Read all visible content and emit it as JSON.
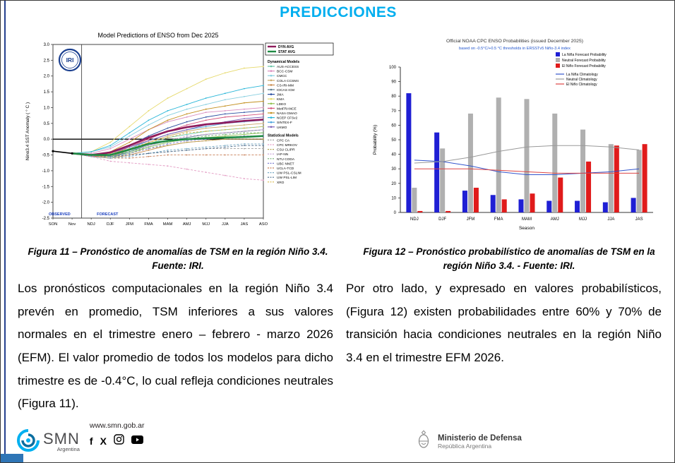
{
  "page": {
    "title": "PREDICCIONES",
    "accent_color": "#00aeef"
  },
  "figure11": {
    "caption": "Figura 11 – Pronóstico de anomalías de TSM en la región Niño 3.4. Fuente: IRI.",
    "body": "Los pronósticos computacionales en la región Niño 3.4 prevén en promedio, TSM inferiores a sus valores normales en el trimestre enero – febrero - marzo 2026 (EFM). El valor promedio de todos los modelos para dicho trimestre es de -0.4°C, lo cual refleja condiciones neutrales (Figura 11)."
  },
  "figure12": {
    "caption": "Figura 12 – Pronóstico probabilístico de anomalías de TSM en la región Niño 3.4. - Fuente: IRI.",
    "body": "Por otro lado, y expresado en valores probabilísticos, (Figura 12) existen probabilidades entre 60% y 70% de transición hacia condiciones neutrales en la región Niño 3.4 en el trimestre EFM 2026."
  },
  "footer": {
    "website": "www.smn.gob.ar",
    "smn": {
      "name": "SMN",
      "country": "Argentina"
    },
    "social_glyphs": {
      "facebook": "f",
      "x": "X"
    },
    "ministry": {
      "name": "Ministerio de Defensa",
      "sub": "República Argentina"
    }
  },
  "chart_data": [
    {
      "type": "line",
      "title": "Model Predictions of ENSO from Dec 2025",
      "ylabel": "Nino3.4 SST Anomaly ( ° C )",
      "ylim": [
        -2.5,
        3.0
      ],
      "ytick_step": 0.5,
      "x": [
        "SON",
        "Nov",
        "NDJ",
        "DJF",
        "JFM",
        "FMA",
        "MAM",
        "AMJ",
        "MJJ",
        "JJA",
        "JAS",
        "ASO"
      ],
      "regions": {
        "observed_label": "OBSERVED",
        "forecast_label": "FORECAST"
      },
      "logo": "IRI",
      "legend_dynamical_header": "Dynamical Models",
      "legend_statistical_header": "Statistical Models",
      "observed": {
        "name": "OBSERVED",
        "color": "#000000",
        "values": [
          -0.38,
          -0.45,
          null,
          null,
          null,
          null,
          null,
          null,
          null,
          null,
          null,
          null
        ]
      },
      "avg_series": [
        {
          "name": "DYN AVG",
          "color": "#8e1b5b",
          "values": [
            null,
            -0.45,
            -0.5,
            -0.42,
            -0.2,
            0.05,
            0.25,
            0.38,
            0.47,
            0.52,
            0.58,
            0.62
          ]
        },
        {
          "name": "STAT AVG",
          "color": "#1f8a44",
          "values": [
            null,
            -0.45,
            -0.5,
            -0.5,
            -0.33,
            -0.15,
            -0.05,
            0.0,
            0.03,
            0.05,
            0.07,
            0.1
          ]
        }
      ],
      "dynamical_models": [
        {
          "name": "AUS-ACCESS",
          "color": "#66c2a5",
          "values": [
            null,
            -0.45,
            -0.55,
            -0.6,
            -0.4,
            -0.15,
            0.05,
            0.15,
            0.25,
            0.3,
            0.35,
            0.4
          ]
        },
        {
          "name": "BCC-CSM",
          "color": "#d98fc0",
          "values": [
            null,
            -0.45,
            -0.45,
            -0.3,
            0.0,
            0.3,
            0.55,
            0.7,
            0.85,
            0.9,
            0.95,
            1.0
          ]
        },
        {
          "name": "CMCC",
          "color": "#88cfe0",
          "values": [
            null,
            -0.45,
            -0.4,
            -0.25,
            0.1,
            0.45,
            0.75,
            0.95,
            1.1,
            1.25,
            1.35,
            1.45
          ]
        },
        {
          "name": "COLA CCSM4",
          "color": "#caa868",
          "values": [
            null,
            -0.45,
            -0.55,
            -0.55,
            -0.35,
            -0.1,
            0.1,
            0.25,
            0.35,
            0.4,
            0.45,
            0.5
          ]
        },
        {
          "name": "CS-IRI-MM",
          "color": "#c98b4e",
          "values": [
            null,
            -0.45,
            -0.55,
            -0.6,
            -0.5,
            -0.35,
            -0.2,
            -0.1,
            -0.05,
            0.0,
            0.0,
            0.0
          ]
        },
        {
          "name": "IOCAS ICM",
          "color": "#5f7d8c",
          "values": [
            null,
            -0.45,
            -0.5,
            -0.55,
            -0.4,
            -0.2,
            -0.05,
            0.05,
            0.15,
            0.2,
            0.25,
            0.3
          ]
        },
        {
          "name": "JMA",
          "color": "#2b4fa0",
          "values": [
            null,
            -0.45,
            -0.5,
            -0.45,
            -0.2,
            0.1,
            0.35,
            0.55,
            0.7,
            0.8,
            0.85,
            0.9
          ]
        },
        {
          "name": "KMA",
          "color": "#e6d96a",
          "values": [
            null,
            -0.45,
            -0.4,
            -0.1,
            0.4,
            0.9,
            1.3,
            1.6,
            1.9,
            2.1,
            2.25,
            2.3
          ]
        },
        {
          "name": "LDEO",
          "color": "#8fbf4d",
          "values": [
            null,
            -0.45,
            -0.5,
            -0.55,
            -0.45,
            -0.25,
            -0.1,
            0.0,
            0.05,
            0.1,
            0.15,
            0.2
          ]
        },
        {
          "name": "MetFRANCE",
          "color": "#d4527a",
          "values": [
            null,
            -0.45,
            -0.55,
            -0.5,
            -0.25,
            0.0,
            0.25,
            0.45,
            0.6,
            0.7,
            0.75,
            0.8
          ]
        },
        {
          "name": "NASA GMAO",
          "color": "#c28f1e",
          "values": [
            null,
            -0.45,
            -0.5,
            -0.4,
            -0.1,
            0.3,
            0.6,
            0.8,
            0.95,
            1.05,
            1.15,
            1.2
          ]
        },
        {
          "name": "NCEP CFSv2",
          "color": "#29b6d8",
          "values": [
            null,
            -0.45,
            -0.4,
            -0.2,
            0.2,
            0.6,
            0.9,
            1.1,
            1.3,
            1.45,
            1.6,
            1.7
          ]
        },
        {
          "name": "SINTEX-F",
          "color": "#4aa3dd",
          "values": [
            null,
            -0.45,
            -0.5,
            -0.5,
            -0.3,
            -0.05,
            0.15,
            0.3,
            0.4,
            0.5,
            0.55,
            0.6
          ]
        },
        {
          "name": "UKMO",
          "color": "#7a5fb5",
          "values": [
            null,
            -0.45,
            -0.5,
            -0.45,
            -0.25,
            -0.05,
            0.15,
            0.3,
            0.45,
            0.55,
            0.65,
            0.7
          ]
        }
      ],
      "statistical_models": [
        {
          "name": "CPC CA",
          "color": "#9e9e9e",
          "values": [
            null,
            -0.45,
            -0.55,
            -0.6,
            -0.55,
            -0.45,
            -0.4,
            -0.35,
            -0.3,
            -0.3,
            -0.3,
            -0.3
          ]
        },
        {
          "name": "CPC MRKOV",
          "color": "#e39bc3",
          "values": [
            null,
            -0.45,
            -0.55,
            -0.7,
            -0.75,
            -0.8,
            -0.85,
            -0.95,
            -1.05,
            -1.15,
            -1.25,
            -1.3
          ]
        },
        {
          "name": "CSU CLIPR",
          "color": "#b0a14f",
          "values": [
            null,
            -0.45,
            -0.5,
            -0.55,
            -0.45,
            -0.3,
            -0.2,
            -0.1,
            -0.05,
            0.0,
            0.0,
            0.0
          ]
        },
        {
          "name": "IAP-NN",
          "color": "#c49bd4",
          "values": [
            null,
            -0.45,
            -0.5,
            -0.5,
            -0.35,
            -0.2,
            -0.05,
            0.1,
            0.15,
            0.2,
            0.25,
            0.3
          ]
        },
        {
          "name": "NTU CODA",
          "color": "#6fae6f",
          "values": [
            null,
            -0.45,
            -0.5,
            -0.5,
            -0.4,
            -0.25,
            -0.1,
            0.0,
            0.1,
            0.15,
            0.2,
            0.2
          ]
        },
        {
          "name": "UBC NNET",
          "color": "#7f7fd0",
          "values": [
            null,
            -0.45,
            -0.5,
            -0.55,
            -0.45,
            -0.3,
            -0.15,
            -0.05,
            0.0,
            0.05,
            0.1,
            0.1
          ]
        },
        {
          "name": "UCLA-TCD",
          "color": "#c77d56",
          "values": [
            null,
            -0.45,
            -0.5,
            -0.6,
            -0.6,
            -0.55,
            -0.5,
            -0.5,
            -0.5,
            -0.5,
            -0.5,
            -0.5
          ]
        },
        {
          "name": "UW PSL-CSLIM",
          "color": "#74a8c4",
          "values": [
            null,
            -0.45,
            -0.55,
            -0.6,
            -0.55,
            -0.45,
            -0.35,
            -0.3,
            -0.25,
            -0.2,
            -0.15,
            -0.15
          ]
        },
        {
          "name": "UW PSL-LIM",
          "color": "#4f6f8f",
          "values": [
            null,
            -0.45,
            -0.5,
            -0.55,
            -0.5,
            -0.45,
            -0.4,
            -0.35,
            -0.3,
            -0.25,
            -0.2,
            -0.2
          ]
        },
        {
          "name": "XRO",
          "color": "#d8b84a",
          "values": [
            null,
            -0.45,
            -0.5,
            -0.45,
            -0.3,
            -0.1,
            0.05,
            0.2,
            0.25,
            0.3,
            0.35,
            0.4
          ]
        }
      ]
    },
    {
      "type": "bar",
      "title": "Official NOAA CPC ENSO Probabilities (issued December 2025)",
      "subtitle": "based on -0.5°C/+0.5 °C thresholds in ERSSTv5 Niño-3.4 index",
      "xlabel": "Season",
      "ylabel": "Probability (%)",
      "ylim": [
        0,
        100
      ],
      "ytick_step": 10,
      "categories": [
        "NDJ",
        "DJF",
        "JFM",
        "FMA",
        "MAM",
        "AMJ",
        "MJJ",
        "JJA",
        "JAS"
      ],
      "bar_series": [
        {
          "name": "La Niña Forecast Probability",
          "color": "#1f1fd4",
          "values": [
            82,
            55,
            15,
            12,
            9,
            8,
            8,
            7,
            10
          ]
        },
        {
          "name": "Neutral Forecast Probability",
          "color": "#b0b0b0",
          "values": [
            17,
            44,
            68,
            79,
            78,
            68,
            57,
            47,
            43
          ]
        },
        {
          "name": "El Niño Forecast Probability",
          "color": "#e01b1b",
          "values": [
            1,
            1,
            17,
            9,
            13,
            24,
            35,
            46,
            47
          ]
        }
      ],
      "line_series": [
        {
          "name": "La Niña Climatology",
          "color": "#3355cc",
          "values": [
            36,
            35,
            32,
            28,
            26,
            26,
            27,
            28,
            30
          ]
        },
        {
          "name": "Neutral Climatology",
          "color": "#999999",
          "values": [
            34,
            35,
            38,
            42,
            45,
            46,
            46,
            45,
            43
          ]
        },
        {
          "name": "El Niño Climatology",
          "color": "#dd4444",
          "values": [
            30,
            30,
            30,
            29,
            28,
            27,
            27,
            27,
            27
          ]
        }
      ]
    }
  ]
}
